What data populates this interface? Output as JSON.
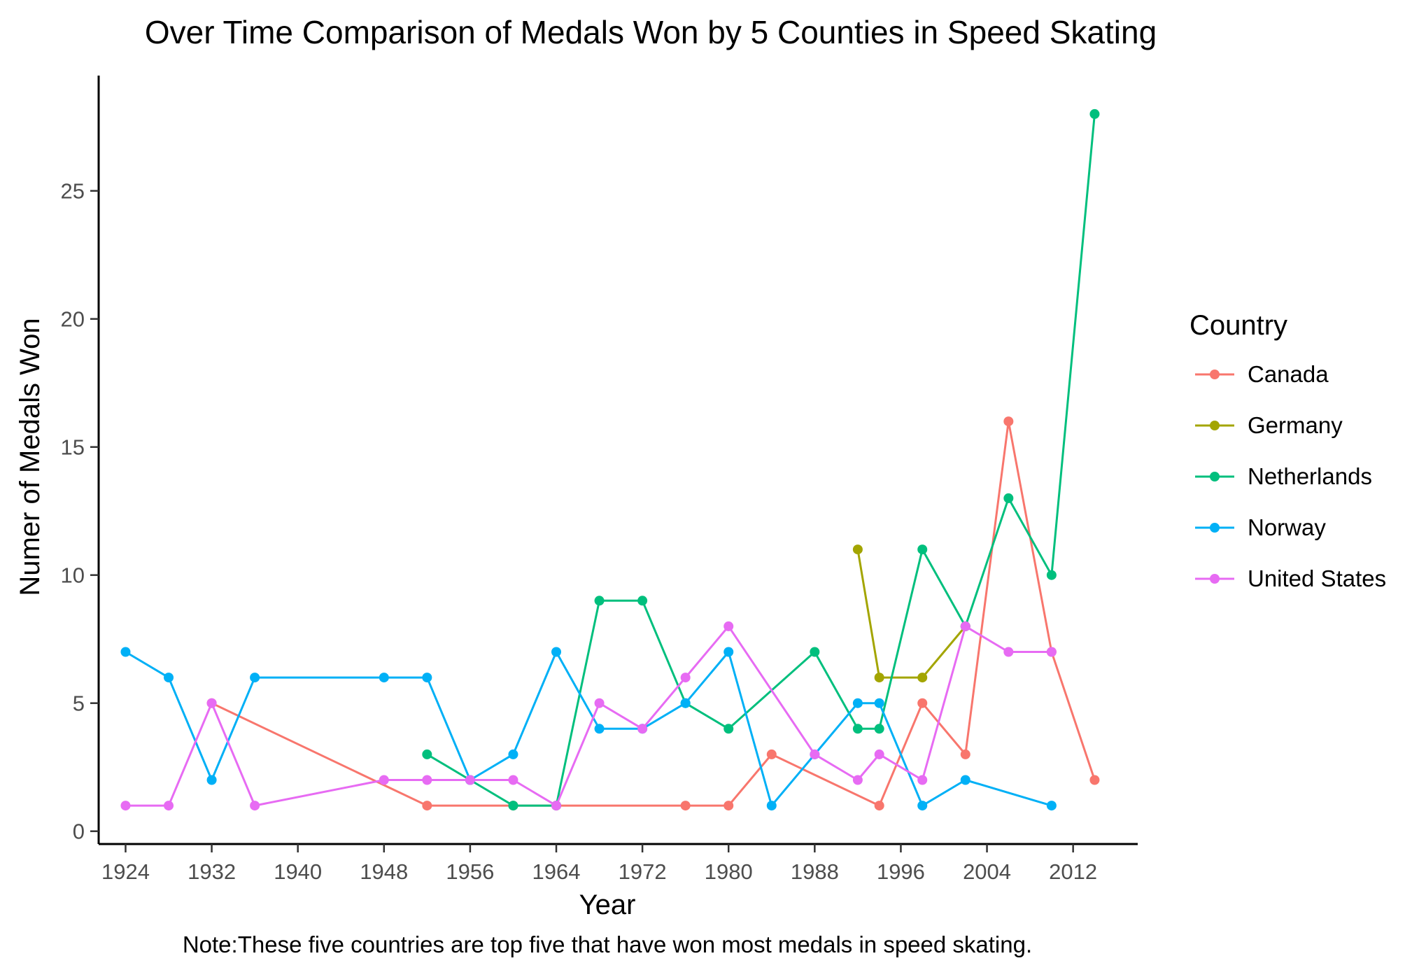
{
  "chart_data": {
    "type": "line",
    "title": "Over Time Comparison of Medals Won by 5 Counties in Speed Skating",
    "xlabel": "Year",
    "ylabel": "Numer of Medals Won",
    "caption": "Note:These five countries are top five that have won most medals in speed skating.",
    "xlim": [
      1921.5,
      2018
    ],
    "ylim": [
      -0.5,
      29.5
    ],
    "x_ticks": [
      1924,
      1932,
      1940,
      1948,
      1956,
      1964,
      1972,
      1980,
      1988,
      1996,
      2004,
      2012
    ],
    "y_ticks": [
      0,
      5,
      10,
      15,
      20,
      25
    ],
    "legend": {
      "title": "Country",
      "position": "right"
    },
    "grid": false,
    "series": [
      {
        "name": "Canada",
        "color": "#F8766D",
        "x": [
          1932,
          1952,
          1960,
          1964,
          1976,
          1980,
          1984,
          1994,
          1998,
          2002,
          2006,
          2010,
          2014
        ],
        "y": [
          5,
          1,
          1,
          1,
          1,
          1,
          3,
          1,
          5,
          3,
          16,
          7,
          2
        ]
      },
      {
        "name": "Germany",
        "color": "#A3A500",
        "x": [
          1992,
          1994,
          1998,
          2002
        ],
        "y": [
          11,
          6,
          6,
          8
        ]
      },
      {
        "name": "Netherlands",
        "color": "#00BF7D",
        "x": [
          1952,
          1956,
          1960,
          1964,
          1968,
          1972,
          1976,
          1980,
          1988,
          1992,
          1994,
          1998,
          2002,
          2006,
          2010,
          2014
        ],
        "y": [
          3,
          2,
          1,
          1,
          9,
          9,
          5,
          4,
          7,
          4,
          4,
          11,
          8,
          13,
          10,
          28
        ]
      },
      {
        "name": "Norway",
        "color": "#00B0F6",
        "x": [
          1924,
          1928,
          1932,
          1936,
          1948,
          1952,
          1956,
          1960,
          1964,
          1968,
          1972,
          1976,
          1980,
          1984,
          1988,
          1992,
          1994,
          1998,
          2002,
          2010
        ],
        "y": [
          7,
          6,
          2,
          6,
          6,
          6,
          2,
          3,
          7,
          4,
          4,
          5,
          7,
          1,
          3,
          5,
          5,
          1,
          2,
          1
        ]
      },
      {
        "name": "United States",
        "color": "#E76BF3",
        "x": [
          1924,
          1928,
          1932,
          1936,
          1948,
          1952,
          1956,
          1960,
          1964,
          1968,
          1972,
          1976,
          1980,
          1988,
          1992,
          1994,
          1998,
          2002,
          2006,
          2010
        ],
        "y": [
          1,
          1,
          5,
          1,
          2,
          2,
          2,
          2,
          1,
          5,
          4,
          6,
          8,
          3,
          2,
          3,
          2,
          8,
          7,
          7
        ]
      }
    ]
  }
}
